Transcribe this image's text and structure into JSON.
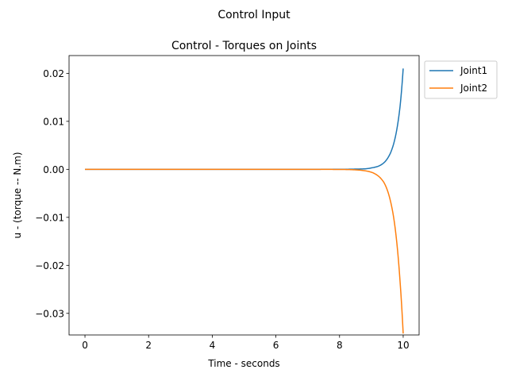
{
  "figure": {
    "suptitle": "Control Input"
  },
  "chart_data": {
    "type": "line",
    "title": "Control - Torques on Joints",
    "xlabel": "Time - seconds",
    "ylabel": "u - (torque -- N.m)",
    "xlim": [
      -0.5,
      10.5
    ],
    "ylim": [
      -0.0345,
      0.0237
    ],
    "xticks": [
      0,
      2,
      4,
      6,
      8,
      10
    ],
    "xtick_labels": [
      "0",
      "2",
      "4",
      "6",
      "8",
      "10"
    ],
    "yticks": [
      0.02,
      0.01,
      0.0,
      -0.01,
      -0.02,
      -0.03
    ],
    "ytick_labels": [
      "0.02",
      "0.01",
      "0.00",
      "−0.01",
      "−0.02",
      "−0.03"
    ],
    "grid": false,
    "legend": {
      "placement": "outside-top-right"
    },
    "series": [
      {
        "name": "Joint1",
        "color": "#1f77b4",
        "x": [
          0,
          2,
          4,
          6,
          7,
          8,
          8.5,
          8.8,
          9.0,
          9.2,
          9.4,
          9.5,
          9.6,
          9.7,
          9.8,
          9.9,
          10.0
        ],
        "y": [
          0,
          0,
          0,
          0,
          0,
          1e-05,
          5e-05,
          0.0001,
          0.0003,
          0.0006,
          0.0014,
          0.0022,
          0.0034,
          0.0053,
          0.0083,
          0.013,
          0.021
        ]
      },
      {
        "name": "Joint2",
        "color": "#ff7f0e",
        "x": [
          0,
          2,
          4,
          6,
          7,
          8,
          8.5,
          8.8,
          9.0,
          9.2,
          9.4,
          9.5,
          9.6,
          9.7,
          9.8,
          9.9,
          10.0
        ],
        "y": [
          0,
          0,
          0,
          0,
          0,
          -2e-05,
          -0.0001,
          -0.0003,
          -0.0006,
          -0.0013,
          -0.0028,
          -0.0043,
          -0.0066,
          -0.01,
          -0.0153,
          -0.0232,
          -0.0342
        ]
      }
    ]
  }
}
